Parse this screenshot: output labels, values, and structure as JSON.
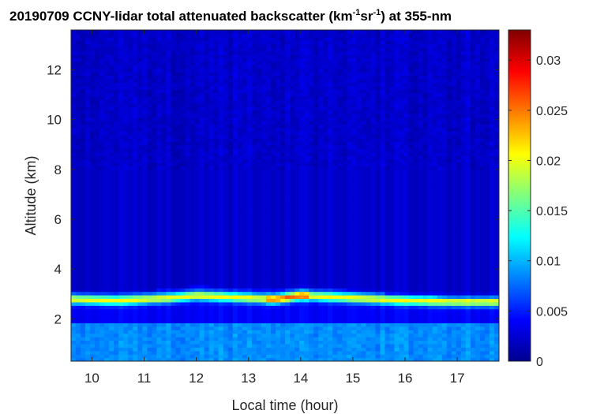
{
  "chart_data": {
    "type": "heatmap",
    "title": {
      "prefix": "20190709 CCNY-lidar total attenuated backscatter (km",
      "sup1": "-1",
      "mid": "sr",
      "sup2": "-1",
      "suffix": ") at 355-nm"
    },
    "xlabel": "Local time (hour)",
    "ylabel": "Altitude (km)",
    "xlim": [
      9.6,
      17.8
    ],
    "ylim": [
      0.3,
      13.6
    ],
    "x_ticks": [
      10,
      11,
      12,
      13,
      14,
      15,
      16,
      17
    ],
    "y_ticks": [
      2,
      4,
      6,
      8,
      10,
      12
    ],
    "colorbar": {
      "colormap": "jet",
      "range": [
        0,
        0.033
      ],
      "ticks": [
        0,
        0.005,
        0.01,
        0.015,
        0.02,
        0.025,
        0.03
      ],
      "tick_labels": [
        "0",
        "0.005",
        "0.01",
        "0.015",
        "0.02",
        "0.025",
        "0.03"
      ]
    },
    "layers": {
      "aerosol_layer_top_km": [
        {
          "time": 9.6,
          "alt": 3.15
        },
        {
          "time": 10.5,
          "alt": 3.1
        },
        {
          "time": 11.5,
          "alt": 3.2
        },
        {
          "time": 12.0,
          "alt": 3.35
        },
        {
          "time": 13.0,
          "alt": 3.2
        },
        {
          "time": 14.0,
          "alt": 3.3
        },
        {
          "time": 15.0,
          "alt": 3.15
        },
        {
          "time": 16.0,
          "alt": 2.95
        },
        {
          "time": 17.0,
          "alt": 2.85
        },
        {
          "time": 17.8,
          "alt": 2.8
        }
      ],
      "aerosol_layer_peak_km": [
        {
          "time": 9.6,
          "alt": 2.8
        },
        {
          "time": 10.5,
          "alt": 2.75
        },
        {
          "time": 11.5,
          "alt": 2.85
        },
        {
          "time": 12.0,
          "alt": 2.95
        },
        {
          "time": 13.0,
          "alt": 2.85
        },
        {
          "time": 13.5,
          "alt": 2.8
        },
        {
          "time": 14.0,
          "alt": 2.95
        },
        {
          "time": 15.0,
          "alt": 2.85
        },
        {
          "time": 16.0,
          "alt": 2.75
        },
        {
          "time": 17.0,
          "alt": 2.7
        },
        {
          "time": 17.8,
          "alt": 2.7
        }
      ],
      "peak_value": 0.022,
      "boundary_layer_top_km": 1.9,
      "boundary_layer_value": 0.009,
      "free_troposphere_value": 0.0025
    }
  }
}
